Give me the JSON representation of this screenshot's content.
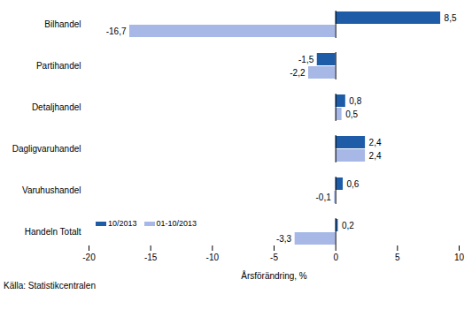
{
  "chart_data": {
    "type": "bar",
    "orientation": "horizontal",
    "categories": [
      "Bilhandel",
      "Partihandel",
      "Detaljhandel",
      "Dagligvaruhandel",
      "Varuhushandel",
      "Handeln Totalt"
    ],
    "series": [
      {
        "name": "10/2013",
        "color": "#1f5ca8",
        "values": [
          8.5,
          -1.5,
          0.8,
          2.4,
          0.6,
          0.2
        ],
        "value_labels": [
          "8,5",
          "-1,5",
          "0,8",
          "2,4",
          "0,6",
          "0,2"
        ]
      },
      {
        "name": "01-10/2013",
        "color": "#a7b7e6",
        "values": [
          -16.7,
          -2.2,
          0.5,
          2.4,
          -0.1,
          -3.3
        ],
        "value_labels": [
          "-16,7",
          "-2,2",
          "0,5",
          "2,4",
          "-0,1",
          "-3,3"
        ]
      }
    ],
    "xlabel": "Årsförändring, %",
    "caption": "Källa: Statistikcentralen",
    "xlim": [
      -20,
      10
    ],
    "xticks": [
      -20,
      -15,
      -10,
      -5,
      0,
      5,
      10
    ],
    "grid": false,
    "data_labels": true,
    "legend": "bottom left"
  }
}
